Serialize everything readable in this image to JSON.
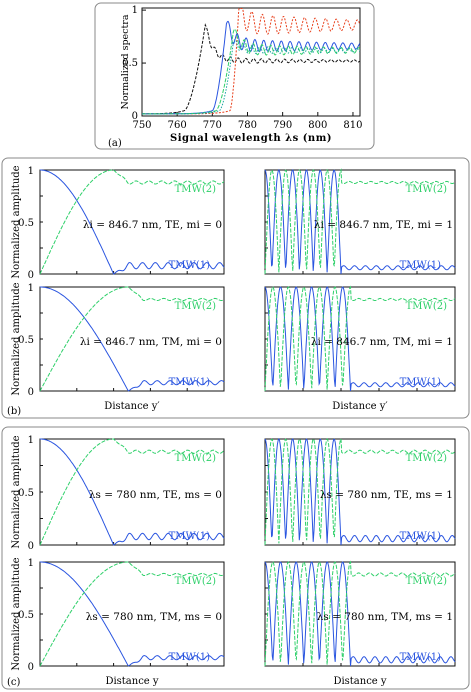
{
  "panel_labels": {
    "a": "(a)",
    "b": "(b)",
    "c": "(c)"
  },
  "colors": {
    "black": "#111111",
    "red": "#e8401c",
    "blue": "#2a55e0",
    "green": "#2fd06a",
    "teal": "#1aa7a0",
    "frame": "#8a8a8a"
  },
  "chart_data": [
    {
      "id": "a",
      "type": "line",
      "xlabel": "Signal wavelength λs (nm)",
      "ylabel": "Normalized spectra",
      "xlim": [
        750,
        812
      ],
      "ylim": [
        0,
        1.02
      ],
      "xticks": [
        750,
        760,
        770,
        780,
        790,
        800,
        810
      ],
      "yticks": [
        0,
        0.5,
        1
      ],
      "ytick_labels": [
        "0",
        "0.5",
        "1"
      ],
      "series": [
        {
          "color": "black",
          "edge": 762,
          "peak_x": 768,
          "peak_y": 0.86,
          "level": 0.52,
          "amp": 0.03,
          "period": 2.2
        },
        {
          "color": "red",
          "edge": 775,
          "peak_x": 777.5,
          "peak_y": 1.0,
          "level": 0.86,
          "amp": 0.11,
          "period": 3.0
        },
        {
          "color": "blue",
          "edge": 770,
          "peak_x": 774,
          "peak_y": 0.87,
          "level": 0.66,
          "amp": 0.07,
          "period": 2.5
        },
        {
          "color": "green",
          "edge": 771,
          "peak_x": 776,
          "peak_y": 0.8,
          "level": 0.62,
          "amp": 0.06,
          "period": 2.5
        },
        {
          "color": "teal",
          "edge": 772,
          "peak_x": 776,
          "peak_y": 0.7,
          "level": 0.62,
          "amp": 0.04,
          "period": 2.3
        }
      ]
    },
    {
      "id": "b1",
      "type": "line",
      "ylabel": "Normalized amplitude",
      "yticks": [
        0,
        0.5,
        1
      ],
      "ytick_labels": [
        "0",
        "0.5",
        "1"
      ],
      "annotation": "λi = 846.7 nm, TE, mi = 0",
      "series": [
        {
          "name": "TMW(2)",
          "color": "green"
        },
        {
          "name": "TMW(1)",
          "color": "blue"
        }
      ]
    },
    {
      "id": "b2",
      "type": "line",
      "annotation": "λi = 846.7 nm, TE, mi = 1",
      "series": [
        {
          "name": "TMW(2)",
          "color": "green"
        },
        {
          "name": "TMW(1)",
          "color": "blue"
        }
      ]
    },
    {
      "id": "b3",
      "type": "line",
      "ylabel": "Normalized amplitude",
      "yticks": [
        0,
        0.5,
        1
      ],
      "ytick_labels": [
        "0",
        "0.5",
        "1"
      ],
      "xlabel": "Distance y′",
      "annotation": "λi = 846.7 nm, TM, mi = 0",
      "series": [
        {
          "name": "TMW(2)",
          "color": "green"
        },
        {
          "name": "TMW(1)",
          "color": "blue"
        }
      ]
    },
    {
      "id": "b4",
      "type": "line",
      "xlabel": "Distance y′",
      "annotation": "λi = 846.7 nm, TM, mi = 1",
      "series": [
        {
          "name": "TMW(2)",
          "color": "green"
        },
        {
          "name": "TMW(1)",
          "color": "blue"
        }
      ]
    },
    {
      "id": "c1",
      "type": "line",
      "ylabel": "Normalized amplitude",
      "yticks": [
        0,
        0.5,
        1
      ],
      "ytick_labels": [
        "0",
        "0.5",
        "1"
      ],
      "annotation": "λs = 780 nm, TE, ms = 0",
      "series": [
        {
          "name": "TMW(2)",
          "color": "green"
        },
        {
          "name": "TMW(1)",
          "color": "blue"
        }
      ]
    },
    {
      "id": "c2",
      "type": "line",
      "annotation": "λs = 780 nm, TE, ms = 1",
      "series": [
        {
          "name": "TMW(2)",
          "color": "green"
        },
        {
          "name": "TMW(1)",
          "color": "blue"
        }
      ]
    },
    {
      "id": "c3",
      "type": "line",
      "ylabel": "Normalized amplitude",
      "yticks": [
        0,
        0.5,
        1
      ],
      "ytick_labels": [
        "0",
        "0.5",
        "1"
      ],
      "xlabel": "Distance y",
      "annotation": "λs = 780 nm, TM, ms = 0",
      "series": [
        {
          "name": "TMW(2)",
          "color": "green"
        },
        {
          "name": "TMW(1)",
          "color": "blue"
        }
      ]
    },
    {
      "id": "c4",
      "type": "line",
      "xlabel": "Distance y",
      "annotation": "λs = 780 nm, TM, ms = 1",
      "series": [
        {
          "name": "TMW(2)",
          "color": "green"
        },
        {
          "name": "TMW(1)",
          "color": "blue"
        }
      ]
    }
  ]
}
